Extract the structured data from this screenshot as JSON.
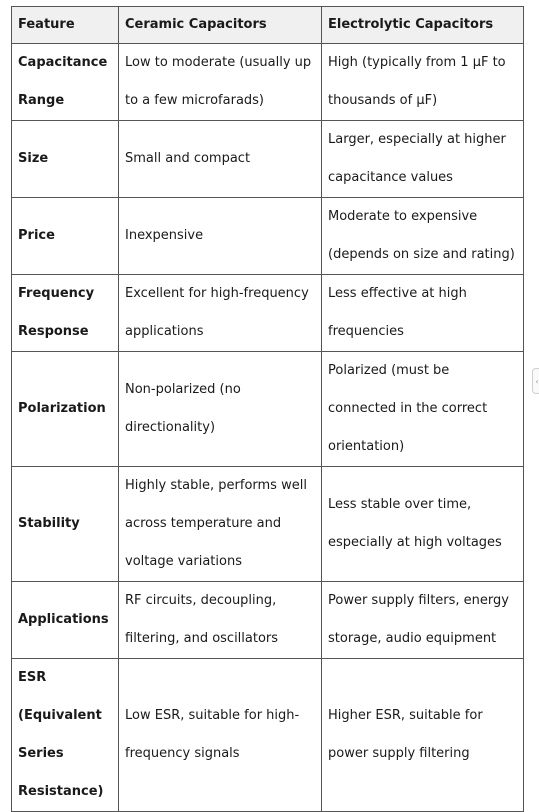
{
  "table": {
    "headers": [
      "Feature",
      "Ceramic Capacitors",
      "Electrolytic Capacitors"
    ],
    "rows": [
      {
        "feature": "Capacitance Range",
        "ceramic": "Low to moderate (usually up to a few microfarads)",
        "electrolytic": "High (typically from 1  μF to thousands of  μF)"
      },
      {
        "feature": "Size",
        "ceramic": "Small and compact",
        "electrolytic": "Larger, especially at higher capacitance values"
      },
      {
        "feature": "Price",
        "ceramic": "Inexpensive",
        "electrolytic": "Moderate to expensive (depends on size and rating)"
      },
      {
        "feature": "Frequency Response",
        "ceramic": "Excellent for high-frequency applications",
        "electrolytic": "Less effective at high frequencies"
      },
      {
        "feature": "Polarization",
        "ceramic": "Non-polarized (no directionality)",
        "electrolytic": "Polarized (must be connected in the correct orientation)"
      },
      {
        "feature": "Stability",
        "ceramic": "Highly stable, performs well across temperature and voltage variations",
        "electrolytic": "Less stable over time, especially at high voltages"
      },
      {
        "feature": "Applications",
        "ceramic": "RF circuits, decoupling, filtering, and oscillators",
        "electrolytic": "Power supply filters, energy storage, audio equipment"
      },
      {
        "feature": "ESR (Equivalent Series Resistance)",
        "ceramic": "Low ESR, suitable for high-frequency signals",
        "electrolytic": "Higher ESR, suitable for power supply filtering"
      }
    ]
  },
  "side_handle": {
    "icon": "chevron-left-icon",
    "glyph": "‹"
  }
}
